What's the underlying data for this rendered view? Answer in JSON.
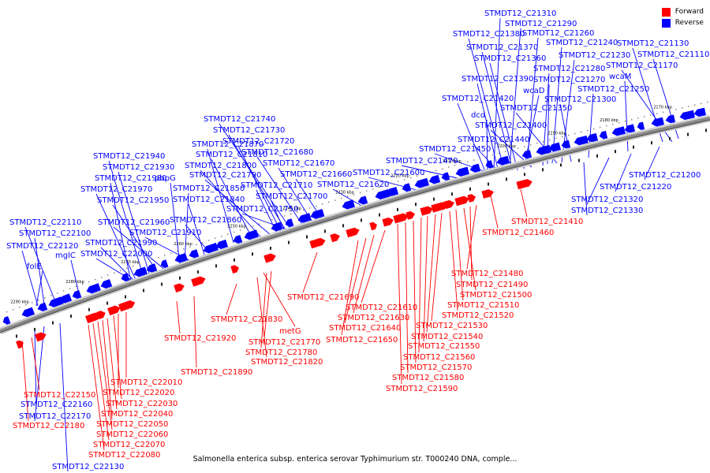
{
  "caption": "Salmonella enterica subsp. enterica serovar Typhimurium str. T000240 DNA, comple...",
  "legend": [
    {
      "label": "Forward",
      "color": "#ff0000"
    },
    {
      "label": "Reverse",
      "color": "#0000ff"
    }
  ],
  "colors": {
    "forward": "#ff0000",
    "reverse": "#0000ff",
    "ruler": "#777777"
  },
  "ticks": [
    "2290 kbp",
    "2280 kbp",
    "2270 kbp",
    "2260 kbp",
    "2250 kbp",
    "2240 kbp",
    "2230 kbp",
    "2220 kbp",
    "2210 kbp",
    "2200 kbp",
    "2190 kbp",
    "2180 kbp",
    "2170 kbp"
  ],
  "reverse_genes": [
    "STMDT12_C21310",
    "STMDT12_C21290",
    "STMDT12_C21260",
    "STMDT12_C21380",
    "STMDT12_C21240",
    "STMDT12_C21130",
    "STMDT12_C21370",
    "STMDT12_C21230",
    "STMDT12_C21110",
    "STMDT12_C21360",
    "STMDT12_C21170",
    "STMDT12_C21280",
    "wcaM",
    "STMDT12_C21390",
    "STMDT12_C21270",
    "wcaD",
    "STMDT12_C21250",
    "STMDT12_C21420",
    "STMDT12_C21300",
    "dcd",
    "STMDT12_C21350",
    "STMDT12_C21400",
    "STMDT12_C21440",
    "STMDT12_C21450",
    "STMDT12_C21470",
    "STMDT12_C21600",
    "STMDT12_C21620",
    "STMDT12_C21740",
    "STMDT12_C21730",
    "STMDT12_C21720",
    "STMDT12_C21870",
    "STMDT12_C21680",
    "STMDT12_C21940",
    "STMDT12_C21810",
    "STMDT12_C21930",
    "STMDT12_C21800",
    "STMDT12_C21670",
    "STMDT12_C21980",
    "pbpG",
    "STMDT12_C21790",
    "STMDT12_C21660",
    "STMDT12_C21970",
    "STMDT12_C21850",
    "STMDT12_C21710",
    "STMDT12_C21700",
    "STMDT12_C21950",
    "STMDT12_C21840",
    "STMDT12_C21750",
    "STMDT12_C22110",
    "STMDT12_C21960",
    "STMDT12_C21860",
    "STMDT12_C22100",
    "STMDT12_C21910",
    "STMDT12_C22120",
    "STMDT12_C21990",
    "STMDT12_C22000",
    "mglC",
    "folE",
    "STMDT12_C21200",
    "STMDT12_C21220",
    "STMDT12_C21320",
    "STMDT12_C21330",
    "STMDT12_C22160",
    "STMDT12_C22170",
    "STMDT12_C22130"
  ],
  "forward_genes": [
    "STMDT12_C21410",
    "STMDT12_C21460",
    "STMDT12_C21480",
    "STMDT12_C21490",
    "STMDT12_C21500",
    "STMDT12_C21510",
    "STMDT12_C21520",
    "STMDT12_C21530",
    "STMDT12_C21540",
    "STMDT12_C21550",
    "STMDT12_C21560",
    "STMDT12_C21570",
    "STMDT12_C21580",
    "STMDT12_C21590",
    "STMDT12_C21690",
    "STMDT12_C21610",
    "STMDT12_C21630",
    "STMDT12_C21640",
    "STMDT12_C21650",
    "STMDT12_C21830",
    "metG",
    "STMDT12_C21770",
    "STMDT12_C21780",
    "STMDT12_C21820",
    "STMDT12_C21920",
    "STMDT12_C21890",
    "STMDT12_C22010",
    "STMDT12_C22020",
    "STMDT12_C22030",
    "STMDT12_C22040",
    "STMDT12_C22050",
    "STMDT12_C22060",
    "STMDT12_C22070",
    "STMDT12_C22080",
    "STMDT12_C22150",
    "STMDT12_C22180"
  ]
}
